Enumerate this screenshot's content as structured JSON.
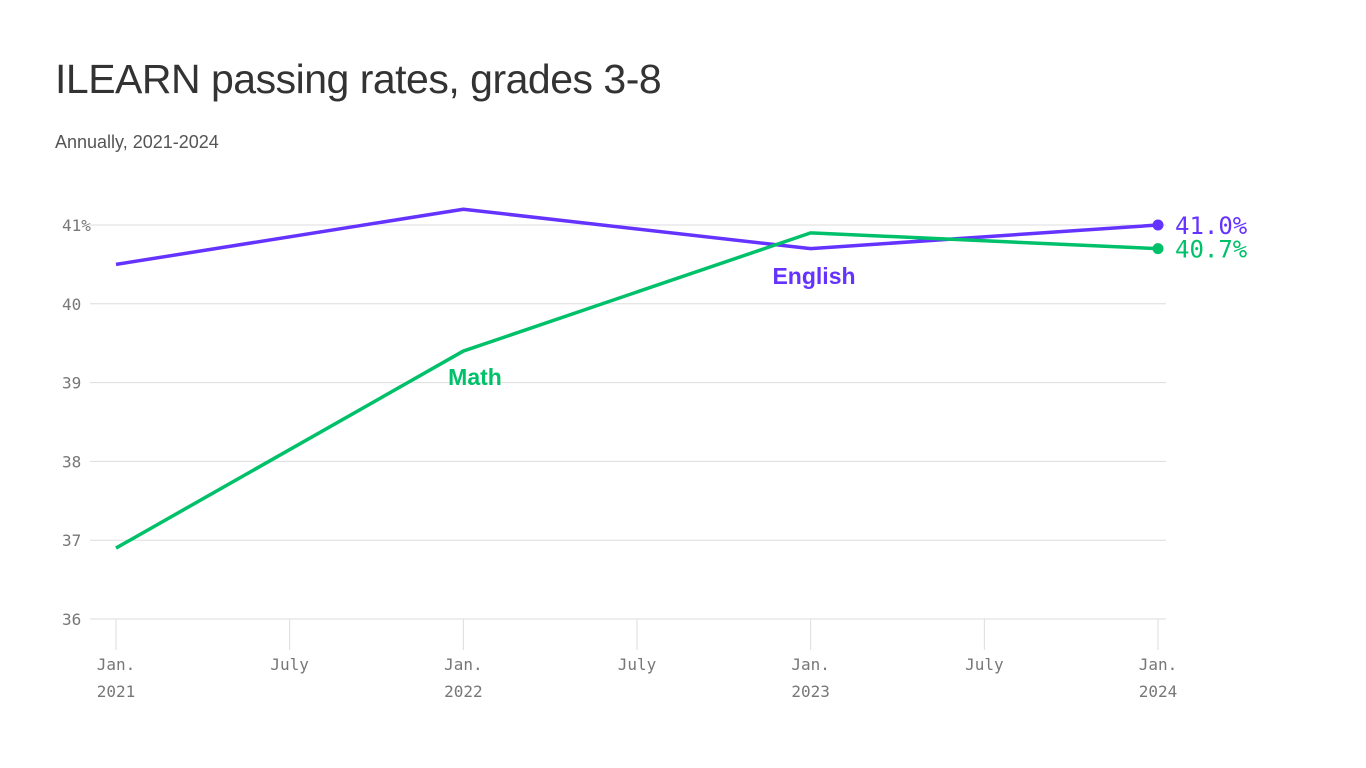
{
  "chart_data": {
    "type": "line",
    "title": "ILEARN passing rates, grades 3-8",
    "subtitle": "Annually, 2021-2024",
    "x": [
      "2021-01",
      "2022-01",
      "2023-01",
      "2024-01"
    ],
    "series": [
      {
        "name": "English",
        "values": [
          40.5,
          41.2,
          40.7,
          41.0
        ],
        "color": "#6533ff",
        "end_label": "41.0%"
      },
      {
        "name": "Math",
        "values": [
          36.9,
          39.4,
          40.9,
          40.7
        ],
        "color": "#00c16a",
        "end_label": "40.7%"
      }
    ],
    "ylim": [
      36,
      41
    ],
    "y_ticks": [
      {
        "value": 41,
        "label": "41%"
      },
      {
        "value": 40,
        "label": "40"
      },
      {
        "value": 39,
        "label": "39"
      },
      {
        "value": 38,
        "label": "38"
      },
      {
        "value": 37,
        "label": "37"
      },
      {
        "value": 36,
        "label": "36"
      }
    ],
    "x_ticks": [
      {
        "value": "2021-01",
        "line1": "Jan.",
        "line2": "2021"
      },
      {
        "value": "2021-07",
        "line1": "July",
        "line2": ""
      },
      {
        "value": "2022-01",
        "line1": "Jan.",
        "line2": "2022"
      },
      {
        "value": "2022-07",
        "line1": "July",
        "line2": ""
      },
      {
        "value": "2023-01",
        "line1": "Jan.",
        "line2": "2023"
      },
      {
        "value": "2023-07",
        "line1": "July",
        "line2": ""
      },
      {
        "value": "2024-01",
        "line1": "Jan.",
        "line2": "2024"
      }
    ],
    "grid": true,
    "xlabel": "",
    "ylabel": ""
  }
}
